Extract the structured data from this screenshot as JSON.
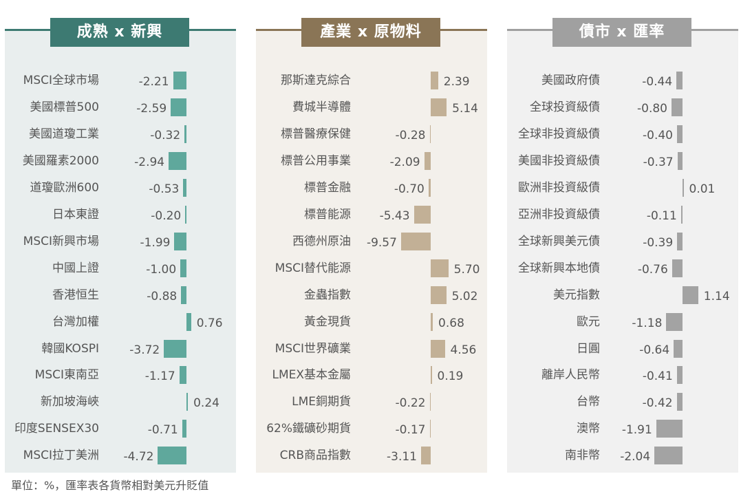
{
  "footer": "單位：%，匯率表各貨幣相對美元升貶值",
  "chart_data": [
    {
      "type": "bar",
      "title": "成熟 x 新興",
      "color": "#5fa89c",
      "header_color": "#3d7a72",
      "bg": "#e9eeee",
      "categories": [
        "MSCI全球市場",
        "美國標普500",
        "美國道瓊工業",
        "美國羅素2000",
        "道瓊歐洲600",
        "日本東證",
        "MSCI新興市場",
        "中國上證",
        "香港恒生",
        "台灣加權",
        "韓國KOSPI",
        "MSCI東南亞",
        "新加坡海峽",
        "印度SENSEX30",
        "MSCI拉丁美洲"
      ],
      "values": [
        -2.21,
        -2.59,
        -0.32,
        -2.94,
        -0.53,
        -0.2,
        -1.99,
        -1.0,
        -0.88,
        0.76,
        -3.72,
        -1.17,
        0.24,
        -0.71,
        -4.72
      ],
      "labels": [
        "-2.21",
        "-2.59",
        "-0.32",
        "-2.94",
        "-0.53",
        "-0.20",
        "-1.99",
        "-1.00",
        "-0.88",
        "0.76",
        "-3.72",
        "-1.17",
        "0.24",
        "-0.71",
        "-4.72"
      ]
    },
    {
      "type": "bar",
      "title": "產業 x 原物料",
      "color": "#c2b096",
      "header_color": "#8a7556",
      "bg": "#f3f0eb",
      "categories": [
        "那斯達克綜合",
        "費城半導體",
        "標普醫療保健",
        "標普公用事業",
        "標普金融",
        "標普能源",
        "西德州原油",
        "MSCI替代能源",
        "金蟲指數",
        "黃金現貨",
        "MSCI世界礦業",
        "LMEX基本金屬",
        "LME銅期貨",
        "62%鐵礦砂期貨",
        "CRB商品指數"
      ],
      "values": [
        2.39,
        5.14,
        -0.28,
        -2.09,
        -0.7,
        -5.43,
        -9.57,
        5.7,
        5.02,
        0.68,
        4.56,
        0.19,
        -0.22,
        -0.17,
        -3.11
      ],
      "labels": [
        "2.39",
        "5.14",
        "-0.28",
        "-2.09",
        "-0.70",
        "-5.43",
        "-9.57",
        "5.70",
        "5.02",
        "0.68",
        "4.56",
        "0.19",
        "-0.22",
        "-0.17",
        "-3.11"
      ]
    },
    {
      "type": "bar",
      "title": "債市 x 匯率",
      "color": "#a3a3a3",
      "header_color": "#a0a0a0",
      "bg": "#f1f1f1",
      "categories": [
        "美國政府債",
        "全球投資級債",
        "全球非投資級債",
        "美國非投資級債",
        "歐洲非投資級債",
        "亞洲非投資級債",
        "全球新興美元債",
        "全球新興本地債",
        "美元指數",
        "歐元",
        "日圓",
        "離岸人民幣",
        "台幣",
        "澳幣",
        "南非幣"
      ],
      "values": [
        -0.44,
        -0.8,
        -0.4,
        -0.37,
        0.01,
        -0.11,
        -0.39,
        -0.76,
        1.14,
        -1.18,
        -0.64,
        -0.41,
        -0.42,
        -1.91,
        -2.04
      ],
      "labels": [
        "-0.44",
        "-0.80",
        "-0.40",
        "-0.37",
        "0.01",
        "-0.11",
        "-0.39",
        "-0.76",
        "1.14",
        "-1.18",
        "-0.64",
        "-0.41",
        "-0.42",
        "-1.91",
        "-2.04"
      ]
    }
  ]
}
